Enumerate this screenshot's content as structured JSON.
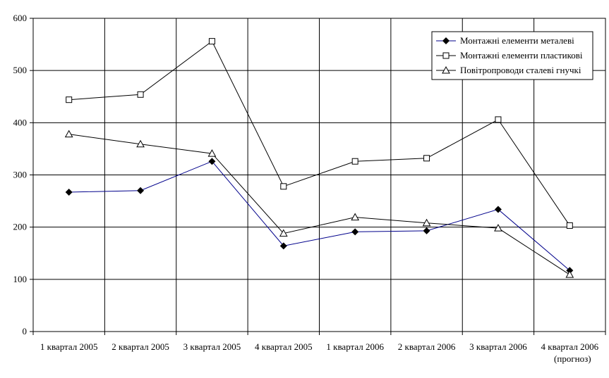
{
  "chart_data": {
    "type": "line",
    "categories": [
      "1 квартал 2005",
      "2 квартал 2005",
      "3 квартал 2005",
      "4 квартал 2005",
      "1 квартал 2006",
      "2 квартал 2006",
      "3 квартал 2006",
      "4 квартал 2006"
    ],
    "category_sublabels": [
      "",
      "",
      "",
      "",
      "",
      "",
      "",
      "(прогноз)"
    ],
    "ylim": [
      0,
      600
    ],
    "yticks": [
      "0",
      "100",
      "200",
      "300",
      "400",
      "500",
      "600"
    ],
    "grid": true,
    "legend_position": "top-right",
    "series": [
      {
        "name": "Монтажні елементи металеві",
        "marker": "diamond",
        "color": "#00008b",
        "values": [
          267,
          270,
          326,
          164,
          191,
          193,
          234,
          117
        ]
      },
      {
        "name": "Монтажні елементи пластикові",
        "marker": "square",
        "color": "#000000",
        "values": [
          444,
          454,
          556,
          278,
          326,
          332,
          406,
          203
        ]
      },
      {
        "name": "Повітропроводи сталеві гнучкі",
        "marker": "triangle",
        "color": "#000000",
        "values": [
          378,
          359,
          341,
          188,
          219,
          208,
          198,
          109
        ]
      }
    ]
  }
}
